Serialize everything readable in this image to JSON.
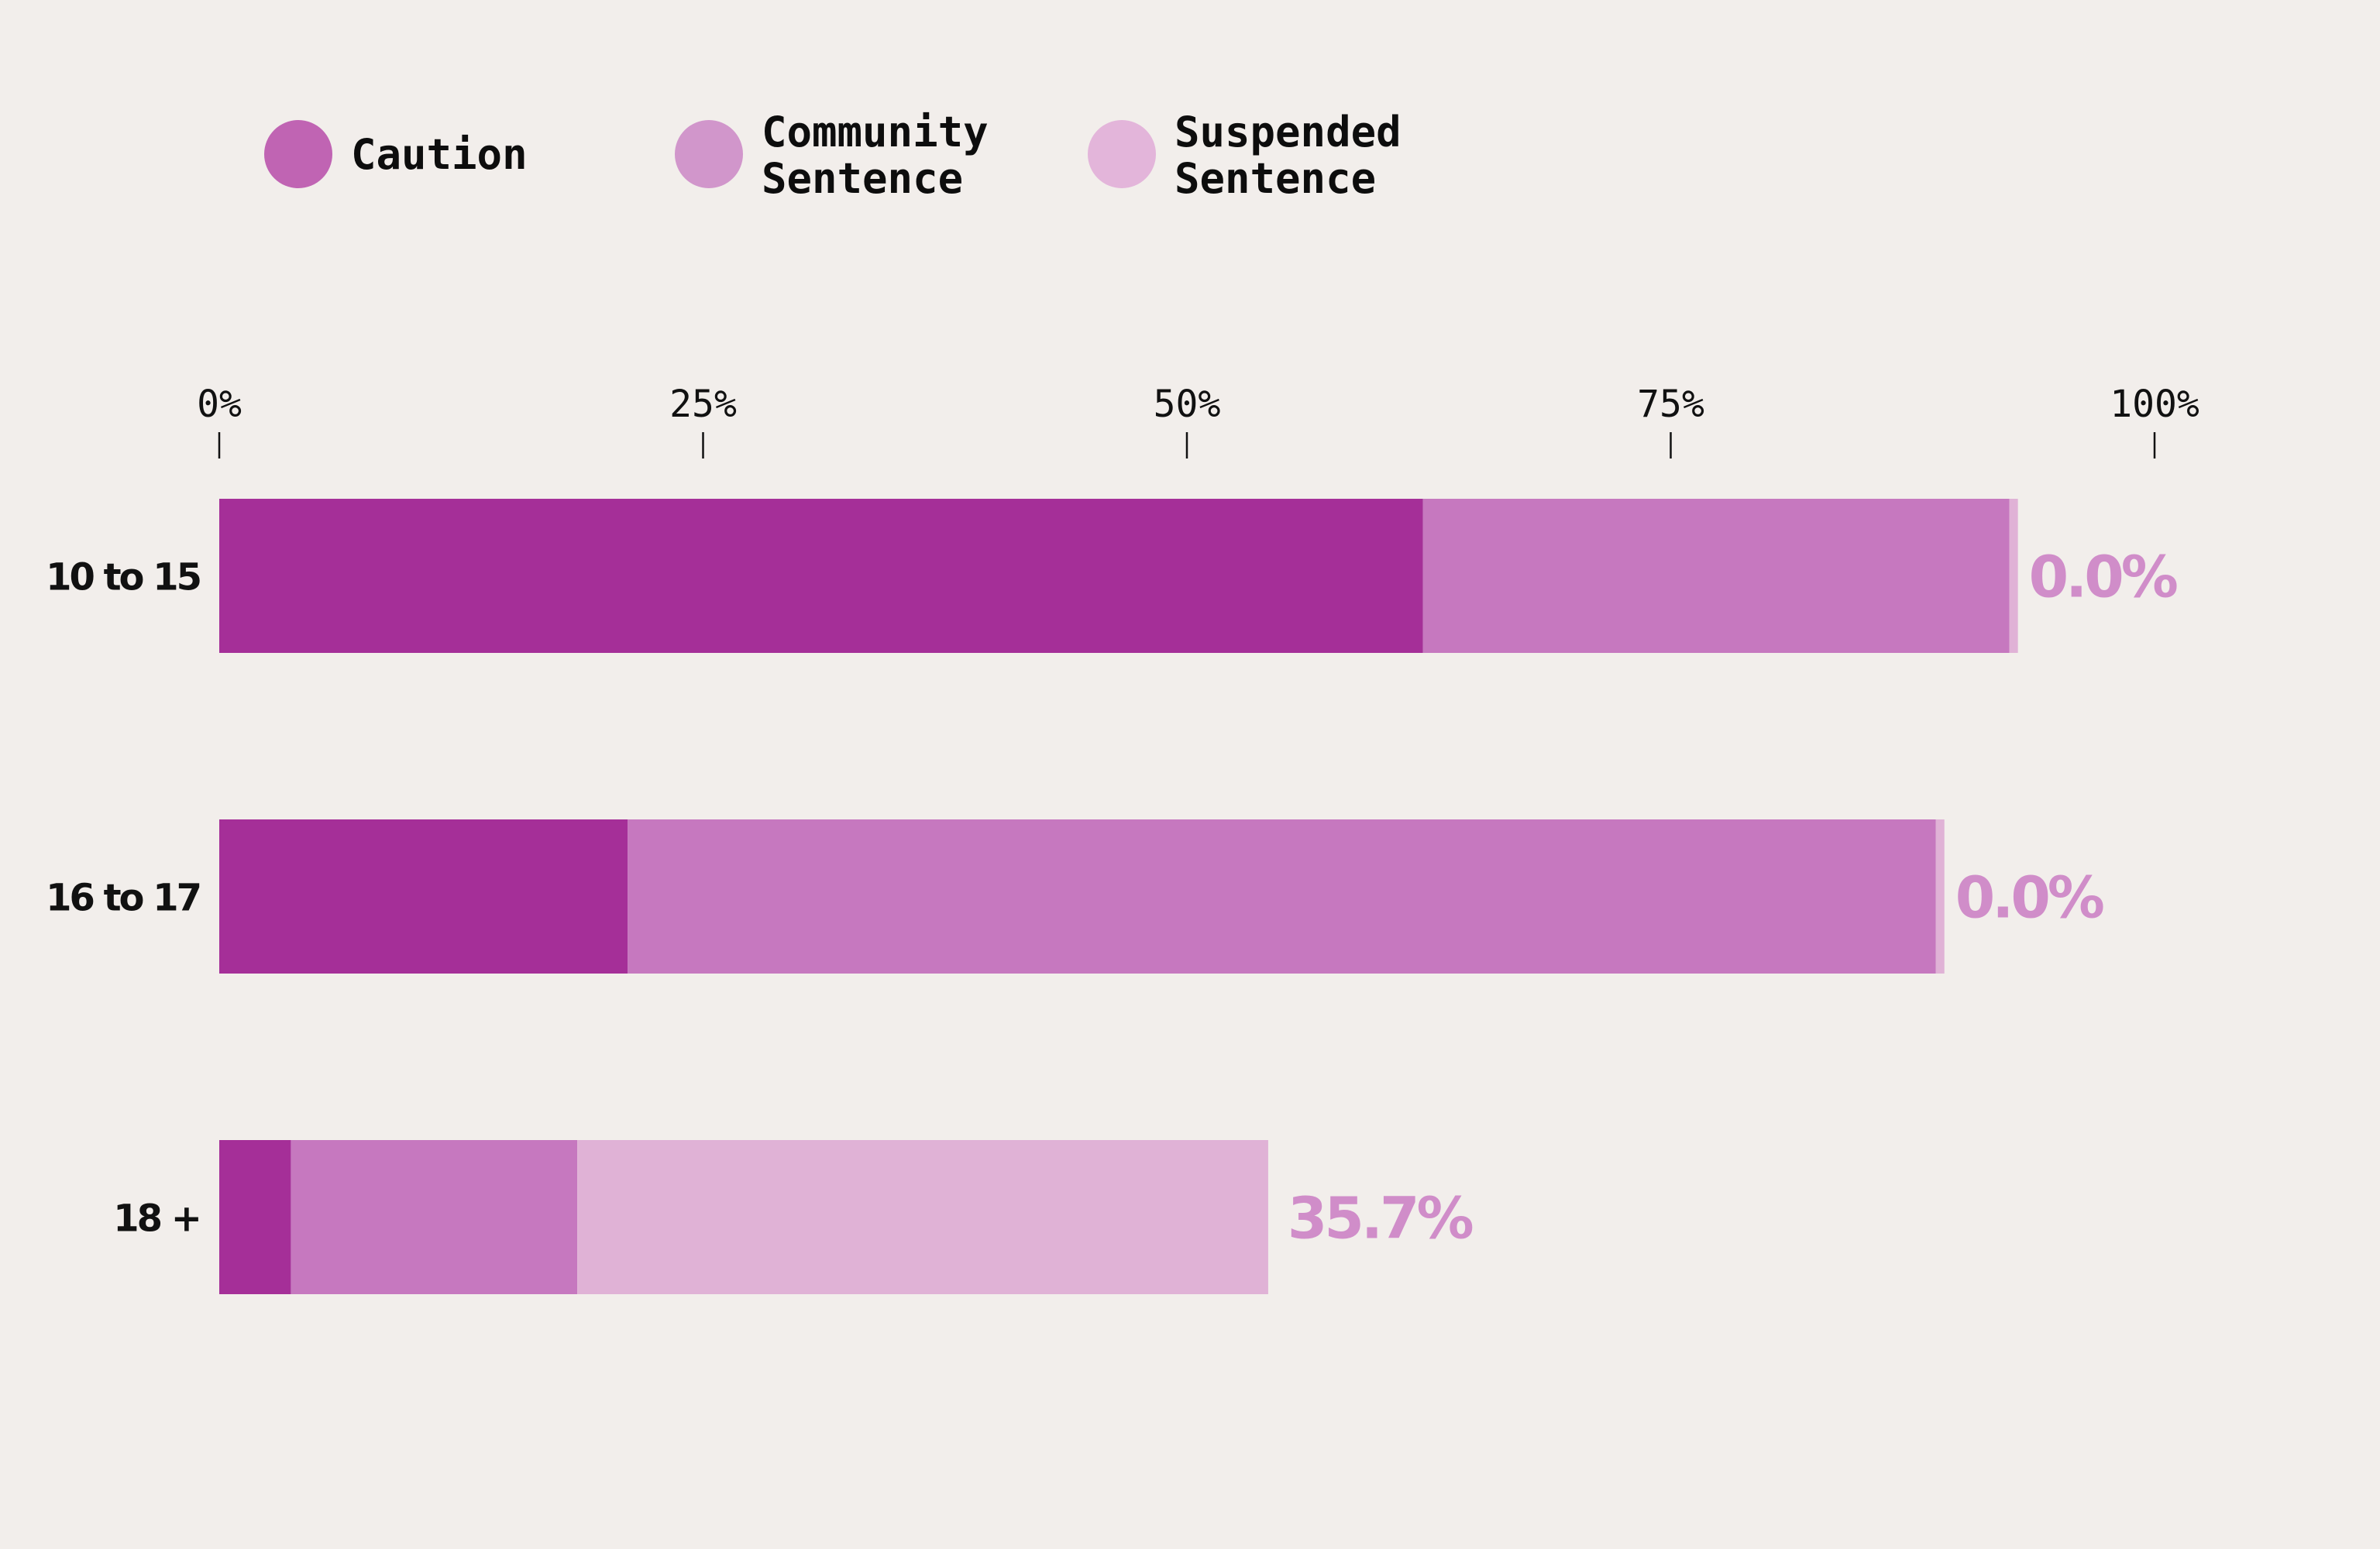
{
  "chart_data": {
    "type": "bar",
    "orientation": "horizontal",
    "stacked": true,
    "categories": [
      "10 to 15",
      "16 to 17",
      "18 +"
    ],
    "series": [
      {
        "name": "Caution",
        "values": [
          62.2,
          21.1,
          3.7
        ]
      },
      {
        "name": "Community Sentence",
        "values": [
          30.3,
          67.6,
          14.8
        ]
      },
      {
        "name": "Suspended Sentence",
        "values": [
          0.0,
          0.0,
          35.7
        ]
      }
    ],
    "xlim": [
      0,
      100
    ],
    "x_ticks": [
      "0%",
      "25%",
      "50%",
      "75%",
      "100%"
    ],
    "value_labels": [
      "0.0%",
      "0.0%",
      "35.7%"
    ],
    "legend_entries": [
      {
        "lines": [
          "Caution"
        ]
      },
      {
        "lines": [
          "Community",
          "Sentence"
        ]
      },
      {
        "lines": [
          "Suspended",
          "Sentence"
        ]
      }
    ],
    "legend_position": "top-left",
    "grid": false,
    "colors": {
      "series": [
        "#a52f98",
        "#c678bf",
        "#e0b2d6"
      ],
      "legend": [
        "#c064b3",
        "#d196cb",
        "#e3b5da"
      ],
      "value_label": "#d08dc9",
      "background": "#f2eeeb"
    }
  }
}
